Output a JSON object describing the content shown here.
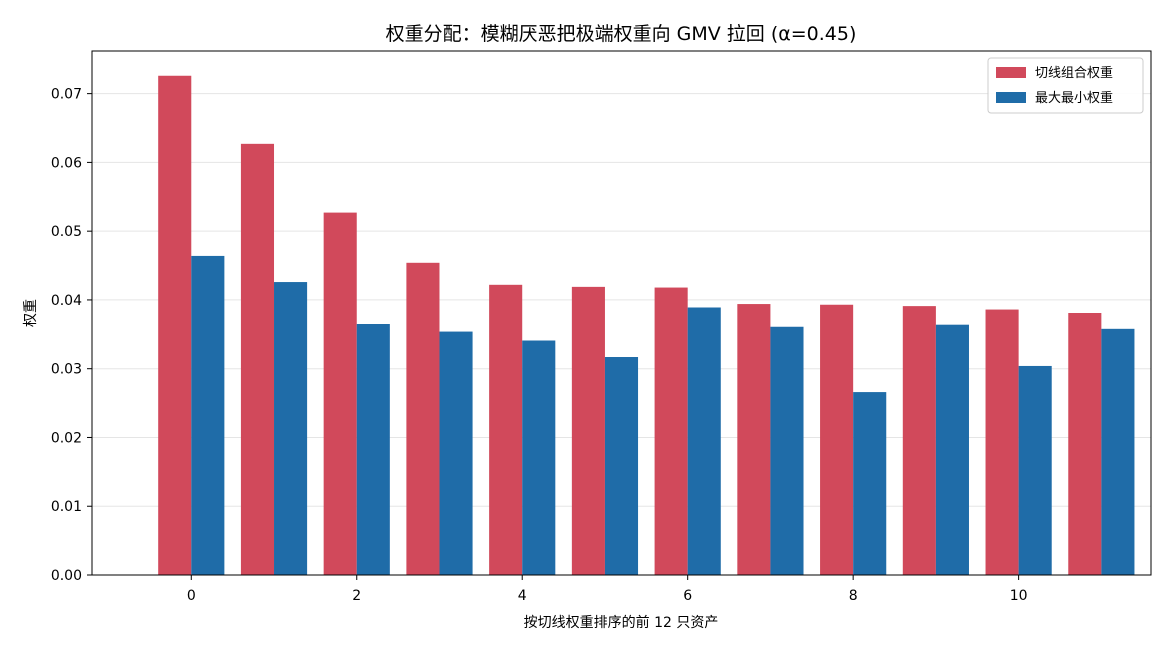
{
  "chart_data": {
    "type": "bar",
    "title": "权重分配：模糊厌恶把极端权重向 GMV 拉回 (α=0.45)",
    "xlabel": "按切线权重排序的前 12 只资产",
    "ylabel": "权重",
    "categories": [
      "0",
      "1",
      "2",
      "3",
      "4",
      "5",
      "6",
      "7",
      "8",
      "9",
      "10",
      "11"
    ],
    "xticks": [
      0,
      2,
      4,
      6,
      8,
      10
    ],
    "xlim": [
      -1.2,
      11.6
    ],
    "ylim": [
      0,
      0.0762
    ],
    "yticks": [
      "0.00",
      "0.01",
      "0.02",
      "0.03",
      "0.04",
      "0.05",
      "0.06",
      "0.07"
    ],
    "grid": "y",
    "legend_position": "top-right",
    "series": [
      {
        "name": "切线组合权重",
        "color": "#d1495b",
        "values": [
          0.0726,
          0.0627,
          0.0527,
          0.0454,
          0.0422,
          0.0419,
          0.0418,
          0.0394,
          0.0393,
          0.0391,
          0.0386,
          0.0381
        ]
      },
      {
        "name": "最大最小权重",
        "color": "#1f6ca8",
        "values": [
          0.0464,
          0.0426,
          0.0365,
          0.0354,
          0.0341,
          0.0317,
          0.0389,
          0.0361,
          0.0266,
          0.0364,
          0.0304,
          0.0358
        ]
      }
    ]
  }
}
